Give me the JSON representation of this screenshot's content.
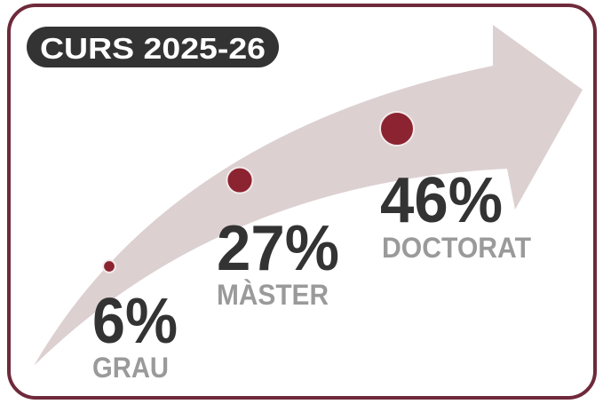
{
  "chart_data": {
    "type": "bubble",
    "title": "CURS 2025-26",
    "categories": [
      "GRAU",
      "MÀSTER",
      "DOCTORAT"
    ],
    "values": [
      6,
      27,
      46
    ],
    "value_labels": [
      "6%",
      "27%",
      "46%"
    ],
    "color": "#8c2330"
  }
}
